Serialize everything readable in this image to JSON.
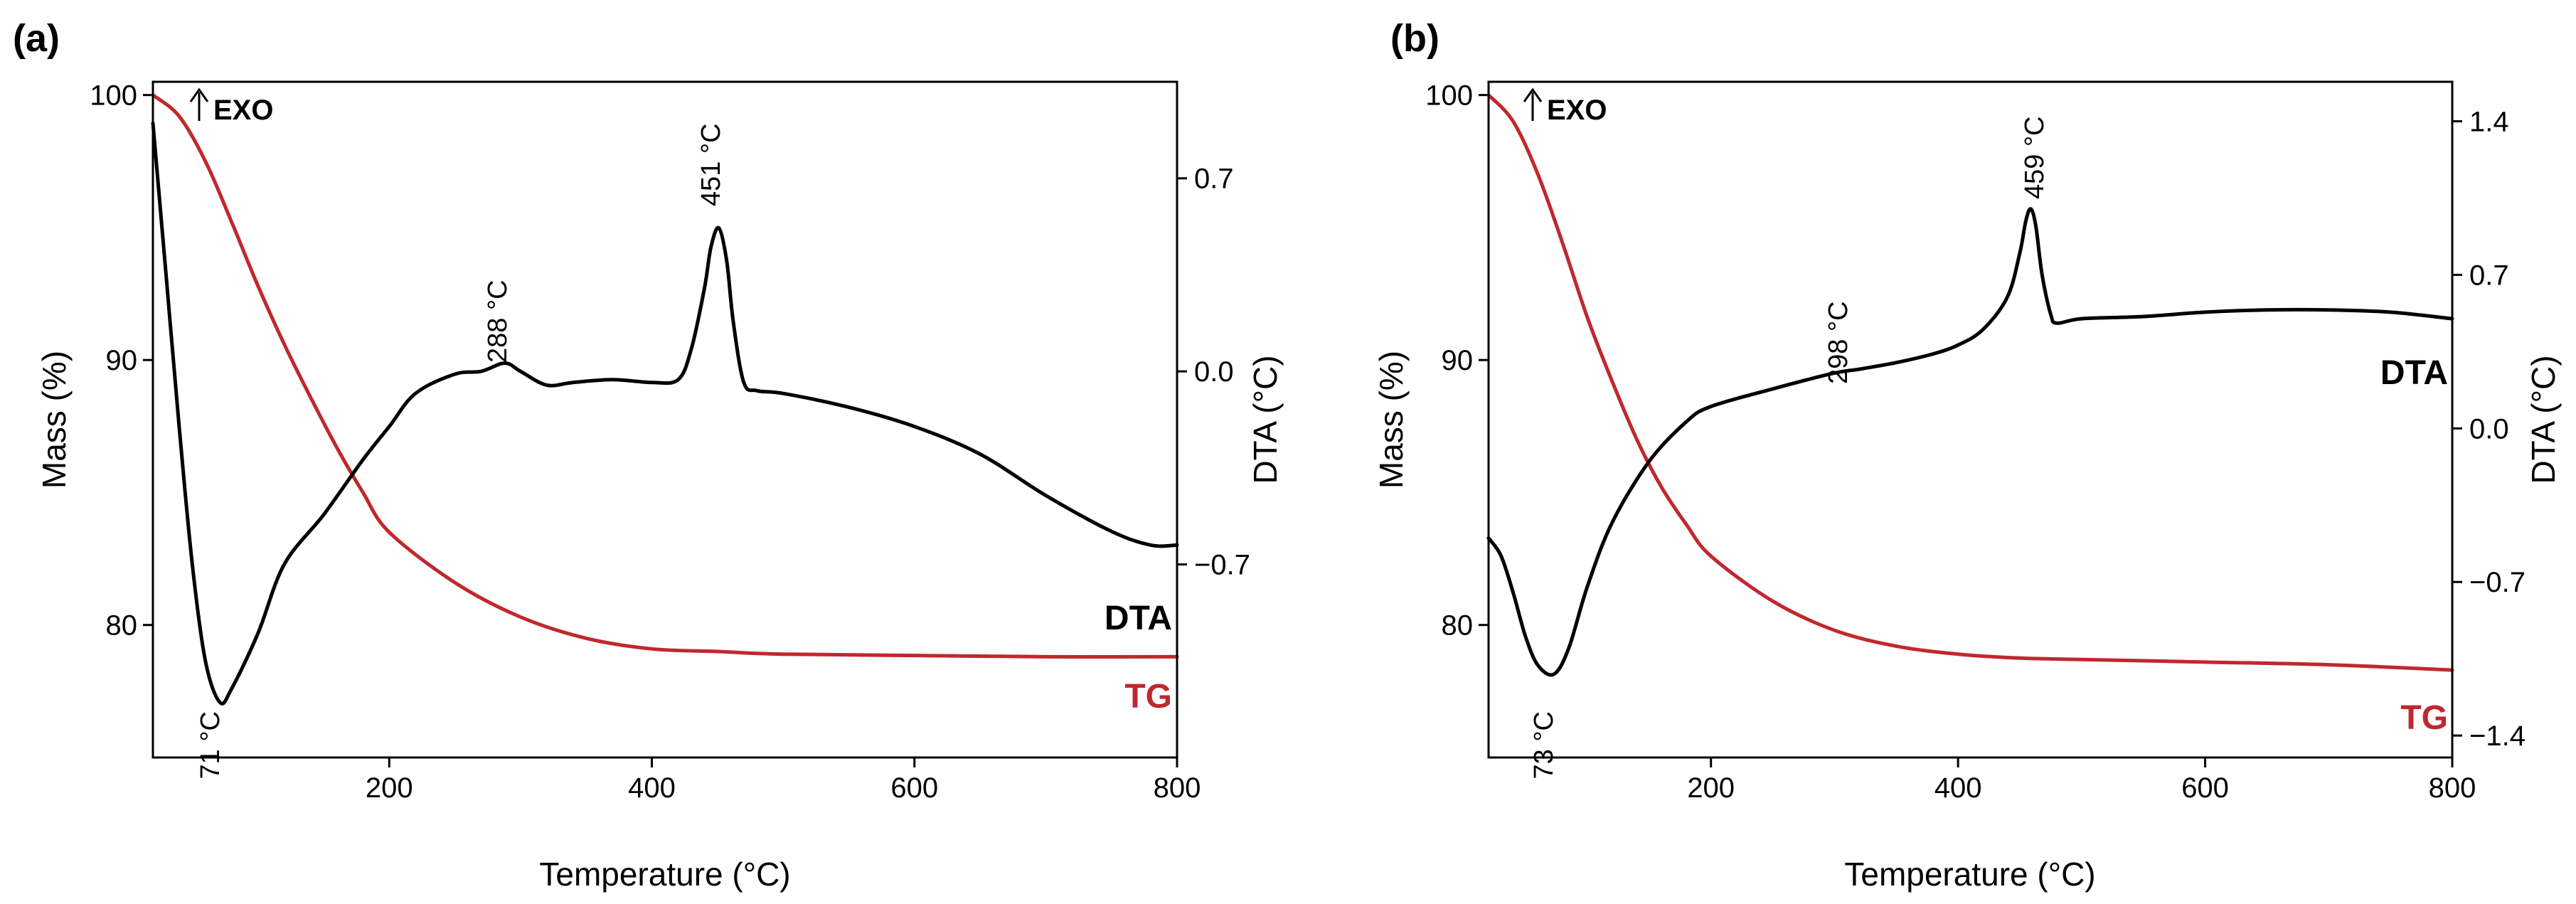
{
  "chart_data": [
    {
      "panel": "(a)",
      "type": "line",
      "xlabel": "Temperature (°C)",
      "ylabel_left": "Mass (%)",
      "ylabel_right": "DTA (°C)",
      "xlim": [
        20,
        800
      ],
      "ylim_left": [
        75,
        100.5
      ],
      "ylim_right": [
        -1.4,
        1.05
      ],
      "x_ticks": [
        200,
        400,
        600,
        800
      ],
      "y_ticks_left": [
        80,
        90,
        100
      ],
      "y_ticks_right": [
        0.7,
        0.0,
        -0.7
      ],
      "y_tick_labels_right": [
        "0.7",
        "0.0",
        "−0.7"
      ],
      "exo_label": "EXO",
      "colors": {
        "TG": "#c0282d",
        "DTA": "#000000"
      },
      "series": [
        {
          "name": "TG",
          "label": "TG",
          "axis": "left",
          "x": [
            20,
            40,
            60,
            80,
            100,
            120,
            140,
            160,
            180,
            200,
            250,
            300,
            350,
            400,
            450,
            500,
            600,
            700,
            800
          ],
          "y": [
            100,
            99.2,
            97.5,
            95.2,
            92.8,
            90.6,
            88.6,
            86.7,
            85.0,
            83.5,
            81.6,
            80.3,
            79.5,
            79.1,
            79.0,
            78.9,
            78.85,
            78.8,
            78.8
          ]
        },
        {
          "name": "DTA",
          "label": "DTA",
          "axis": "right",
          "x": [
            20,
            30,
            40,
            50,
            60,
            71,
            80,
            100,
            120,
            150,
            180,
            200,
            220,
            250,
            270,
            288,
            300,
            320,
            340,
            370,
            400,
            420,
            430,
            440,
            445,
            451,
            457,
            462,
            470,
            480,
            500,
            550,
            600,
            650,
            700,
            750,
            780,
            800
          ],
          "y": [
            0.9,
            0.35,
            -0.2,
            -0.7,
            -1.05,
            -1.2,
            -1.15,
            -0.95,
            -0.7,
            -0.52,
            -0.32,
            -0.2,
            -0.08,
            -0.01,
            0.0,
            0.03,
            0.0,
            -0.05,
            -0.04,
            -0.03,
            -0.04,
            -0.03,
            0.08,
            0.3,
            0.45,
            0.52,
            0.4,
            0.18,
            -0.04,
            -0.07,
            -0.08,
            -0.13,
            -0.2,
            -0.3,
            -0.45,
            -0.58,
            -0.63,
            -0.63
          ]
        }
      ],
      "annotations": [
        {
          "text": "71 °C",
          "x": 71
        },
        {
          "text": "288 °C",
          "x": 288
        },
        {
          "text": "451 °C",
          "x": 451
        }
      ]
    },
    {
      "panel": "(b)",
      "type": "line",
      "xlabel": "Temperature (°C)",
      "ylabel_left": "Mass (%)",
      "ylabel_right": "DTA (°C)",
      "xlim": [
        20,
        800
      ],
      "ylim_left": [
        75,
        100.5
      ],
      "ylim_right": [
        -1.5,
        1.58
      ],
      "x_ticks": [
        200,
        400,
        600,
        800
      ],
      "y_ticks_left": [
        80,
        90,
        100
      ],
      "y_ticks_right": [
        1.4,
        0.7,
        0.0,
        -0.7,
        -1.4
      ],
      "y_tick_labels_right": [
        "1.4",
        "0.7",
        "0.0",
        "−0.7",
        "−1.4"
      ],
      "exo_label": "EXO",
      "colors": {
        "TG": "#c0282d",
        "DTA": "#000000"
      },
      "series": [
        {
          "name": "TG",
          "label": "TG",
          "axis": "left",
          "x": [
            20,
            40,
            60,
            80,
            100,
            120,
            140,
            160,
            180,
            200,
            250,
            300,
            350,
            400,
            450,
            500,
            600,
            700,
            800
          ],
          "y": [
            100,
            99.0,
            97.0,
            94.4,
            91.6,
            89.2,
            87.0,
            85.2,
            83.8,
            82.6,
            80.9,
            79.8,
            79.2,
            78.9,
            78.75,
            78.7,
            78.6,
            78.5,
            78.3
          ]
        },
        {
          "name": "DTA",
          "label": "DTA",
          "axis": "right",
          "x": [
            20,
            30,
            40,
            50,
            60,
            73,
            85,
            100,
            120,
            150,
            180,
            200,
            250,
            298,
            320,
            350,
            380,
            400,
            420,
            440,
            450,
            455,
            459,
            463,
            468,
            475,
            480,
            500,
            550,
            600,
            650,
            700,
            750,
            800
          ],
          "y": [
            -0.5,
            -0.58,
            -0.75,
            -0.95,
            -1.08,
            -1.12,
            -1.0,
            -0.72,
            -0.43,
            -0.15,
            0.03,
            0.1,
            0.18,
            0.25,
            0.27,
            0.3,
            0.34,
            0.38,
            0.45,
            0.6,
            0.8,
            0.95,
            1.0,
            0.92,
            0.7,
            0.52,
            0.48,
            0.5,
            0.51,
            0.53,
            0.54,
            0.54,
            0.53,
            0.5
          ]
        }
      ],
      "annotations": [
        {
          "text": "73 °C",
          "x": 73
        },
        {
          "text": "298 °C",
          "x": 298
        },
        {
          "text": "459 °C",
          "x": 459
        }
      ]
    }
  ]
}
